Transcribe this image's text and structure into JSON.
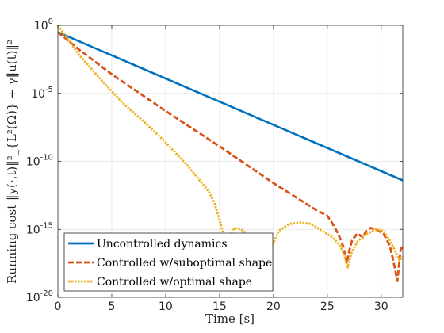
{
  "chart_data": {
    "type": "line",
    "xlabel": "Time [s]",
    "ylabel": "Running cost ‖y(·,t)‖²_{L²(Ω)} + γ‖u(t)‖²",
    "xlim": [
      0,
      32
    ],
    "ylim_exp": [
      -20,
      0
    ],
    "yscale": "log",
    "grid": true,
    "legend_position": "bottom-left",
    "x_ticks": [
      0,
      5,
      10,
      15,
      20,
      25,
      30
    ],
    "x_tick_labels": [
      "0",
      "5",
      "10",
      "15",
      "20",
      "25",
      "30"
    ],
    "y_ticks_exp": [
      0,
      -5,
      -10,
      -15,
      -20
    ],
    "y_tick_labels": [
      {
        "base": "10",
        "exp": "0"
      },
      {
        "base": "10",
        "exp": "-5"
      },
      {
        "base": "10",
        "exp": "-10"
      },
      {
        "base": "10",
        "exp": "-15"
      },
      {
        "base": "10",
        "exp": "-20"
      }
    ],
    "series": [
      {
        "name": "Uncontrolled dynamics",
        "color": "#0072BD",
        "style": "solid",
        "points": [
          [
            0,
            -0.5
          ],
          [
            32,
            -11.4
          ]
        ]
      },
      {
        "name": "Controlled w/suboptimal shape",
        "color": "#D95319",
        "style": "dashed",
        "points": [
          [
            0,
            -0.5
          ],
          [
            2,
            -1.8
          ],
          [
            5,
            -3.6
          ],
          [
            10,
            -6.3
          ],
          [
            15,
            -8.9
          ],
          [
            20,
            -11.6
          ],
          [
            24,
            -13.6
          ],
          [
            25,
            -14.0
          ],
          [
            25.5,
            -14.6
          ],
          [
            26,
            -15.3
          ],
          [
            26.5,
            -16.3
          ],
          [
            26.8,
            -17.5
          ],
          [
            27.0,
            -16.7
          ],
          [
            27.3,
            -15.8
          ],
          [
            27.8,
            -15.3
          ],
          [
            28.3,
            -15.6
          ],
          [
            28.6,
            -15.1
          ],
          [
            29,
            -14.9
          ],
          [
            29.5,
            -15.0
          ],
          [
            30.2,
            -15.3
          ],
          [
            30.8,
            -16.2
          ],
          [
            31.2,
            -17.6
          ],
          [
            31.5,
            -18.8
          ],
          [
            31.8,
            -16.5
          ],
          [
            32,
            -16.2
          ]
        ]
      },
      {
        "name": "Controlled w/optimal shape",
        "color": "#EDB120",
        "style": "dotted",
        "points": [
          [
            0,
            0
          ],
          [
            2,
            -2.2
          ],
          [
            4,
            -4.0
          ],
          [
            6,
            -5.7
          ],
          [
            8,
            -7.1
          ],
          [
            10,
            -8.6
          ],
          [
            12,
            -10.3
          ],
          [
            14,
            -12.2
          ],
          [
            14.5,
            -13.0
          ],
          [
            15.0,
            -14.3
          ],
          [
            15.3,
            -15.2
          ],
          [
            15.6,
            -16.4
          ],
          [
            15.9,
            -15.5
          ],
          [
            16.4,
            -14.9
          ],
          [
            17.0,
            -15.0
          ],
          [
            17.5,
            -15.3
          ],
          [
            19.5,
            -17.0
          ],
          [
            19.9,
            -16.2
          ],
          [
            20.5,
            -15.1
          ],
          [
            21.5,
            -14.6
          ],
          [
            22.5,
            -14.5
          ],
          [
            23.5,
            -14.6
          ],
          [
            24.5,
            -15.1
          ],
          [
            25.5,
            -15.6
          ],
          [
            26.2,
            -16.2
          ],
          [
            26.6,
            -17.0
          ],
          [
            26.9,
            -17.8
          ],
          [
            27.2,
            -16.8
          ],
          [
            27.8,
            -15.9
          ],
          [
            28.5,
            -15.4
          ],
          [
            29.5,
            -15.0
          ],
          [
            30.2,
            -15.1
          ],
          [
            30.8,
            -15.8
          ],
          [
            31.3,
            -16.6
          ],
          [
            31.7,
            -17.3
          ],
          [
            32,
            -17.0
          ]
        ]
      }
    ]
  }
}
